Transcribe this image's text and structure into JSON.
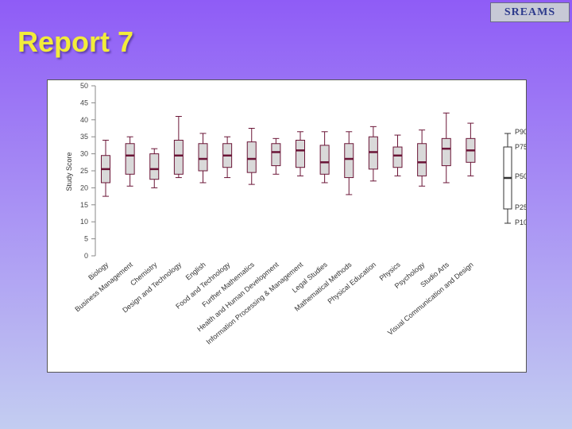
{
  "logo": {
    "text": "SREAMS"
  },
  "slide": {
    "title": "Report 7"
  },
  "colors": {
    "median": "#6b1537",
    "box_fill": "#d9d9d9",
    "whisker": "#6b1537",
    "axis": "#888888"
  },
  "chart_data": {
    "type": "box",
    "ylabel": "Study Score",
    "ylim": [
      0,
      50
    ],
    "yticks": [
      0,
      5,
      10,
      15,
      20,
      25,
      30,
      35,
      40,
      45,
      50
    ],
    "categories": [
      "Biology",
      "Business Management",
      "Chemistry",
      "Design and Technology",
      "English",
      "Food and Technology",
      "Further Mathematics",
      "Health and Human Development",
      "Information Processing & Management",
      "Legal Studies",
      "Mathematical Methods",
      "Physical Education",
      "Physics",
      "Psychology",
      "Studio Arts",
      "Visual Communication and Design"
    ],
    "series": [
      {
        "stat": "P10",
        "values": [
          17.5,
          20.5,
          20,
          23,
          21.5,
          23,
          21,
          24,
          23.5,
          21.5,
          18,
          22,
          23.5,
          20.5,
          21.5,
          23.5
        ]
      },
      {
        "stat": "P25",
        "values": [
          21.5,
          24,
          22.5,
          24,
          25,
          26,
          24.5,
          26.5,
          26,
          24,
          23,
          25.5,
          26,
          23.5,
          26.5,
          27.5
        ]
      },
      {
        "stat": "P50",
        "values": [
          25.5,
          29.5,
          25.5,
          29.5,
          28.5,
          29.5,
          28.5,
          30.5,
          31,
          27.5,
          28.5,
          30.5,
          29.5,
          27.5,
          31.5,
          31
        ]
      },
      {
        "stat": "P75",
        "values": [
          29.5,
          33,
          30,
          34,
          33,
          33,
          33.5,
          33,
          34,
          32.5,
          33,
          35,
          32,
          33,
          34.5,
          34.5
        ]
      },
      {
        "stat": "P90",
        "values": [
          34,
          35,
          31.5,
          41,
          36,
          35,
          37.5,
          34.5,
          36.5,
          36.5,
          36.5,
          38,
          35.5,
          37,
          42,
          39
        ]
      }
    ],
    "legend": {
      "position": "right",
      "labels": [
        "P90",
        "P75",
        "P50",
        "P25",
        "P10"
      ]
    }
  }
}
